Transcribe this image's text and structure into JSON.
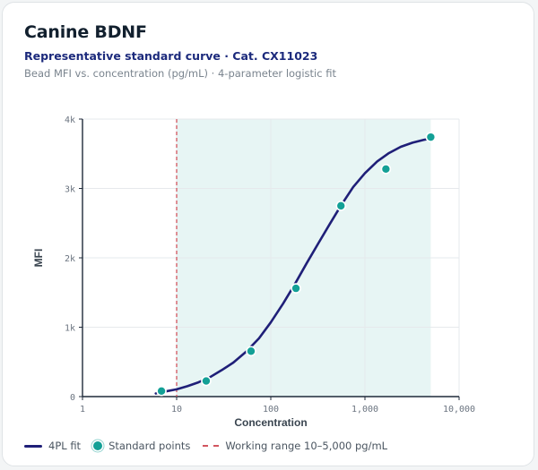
{
  "card": {
    "title": "Canine BDNF",
    "subtitle": "Representative standard curve · Cat. CX11023",
    "caption": "Bead MFI vs. concentration (pg/mL) · 4-parameter logistic fit"
  },
  "legend": {
    "fit_label": "4PL fit",
    "points_label": "Standard points",
    "range_label": "Working range 10–5,000 pg/mL"
  },
  "colors": {
    "fit_line": "#1f1f78",
    "points": "#13a096",
    "range_line": "#d2555f",
    "range_fill": "#e7f5f4"
  },
  "chart_data": {
    "type": "scatter",
    "x_scale": "log",
    "xlim": [
      1,
      10000
    ],
    "ylim": [
      0,
      4000
    ],
    "x_ticks": [
      1,
      10,
      100,
      1000,
      10000
    ],
    "x_tick_labels": [
      "1",
      "10",
      "100",
      "1,000",
      "10,000"
    ],
    "y_ticks": [
      0,
      1000,
      2000,
      3000,
      4000
    ],
    "y_tick_labels": [
      "0",
      "1k",
      "2k",
      "3k",
      "4k"
    ],
    "xlabel": "Concentration",
    "ylabel": "MFI",
    "grid": true,
    "legend_position": "bottom",
    "working_range": [
      10,
      5000
    ],
    "series": [
      {
        "name": "Standard points",
        "type": "scatter",
        "x": [
          6.9,
          20.6,
          61.7,
          185,
          556,
          1670,
          5000
        ],
        "y": [
          80,
          225,
          655,
          1560,
          2750,
          3280,
          3740
        ]
      },
      {
        "name": "4PL fit",
        "type": "line",
        "x": [
          6,
          8,
          10,
          13,
          17,
          22,
          30,
          40,
          55,
          75,
          100,
          135,
          180,
          240,
          320,
          420,
          560,
          750,
          1000,
          1350,
          1800,
          2400,
          3200,
          4200,
          5000
        ],
        "y": [
          45,
          80,
          105,
          150,
          205,
          270,
          380,
          490,
          650,
          840,
          1070,
          1340,
          1620,
          1920,
          2210,
          2480,
          2760,
          3020,
          3220,
          3390,
          3510,
          3600,
          3660,
          3700,
          3720
        ]
      }
    ]
  }
}
